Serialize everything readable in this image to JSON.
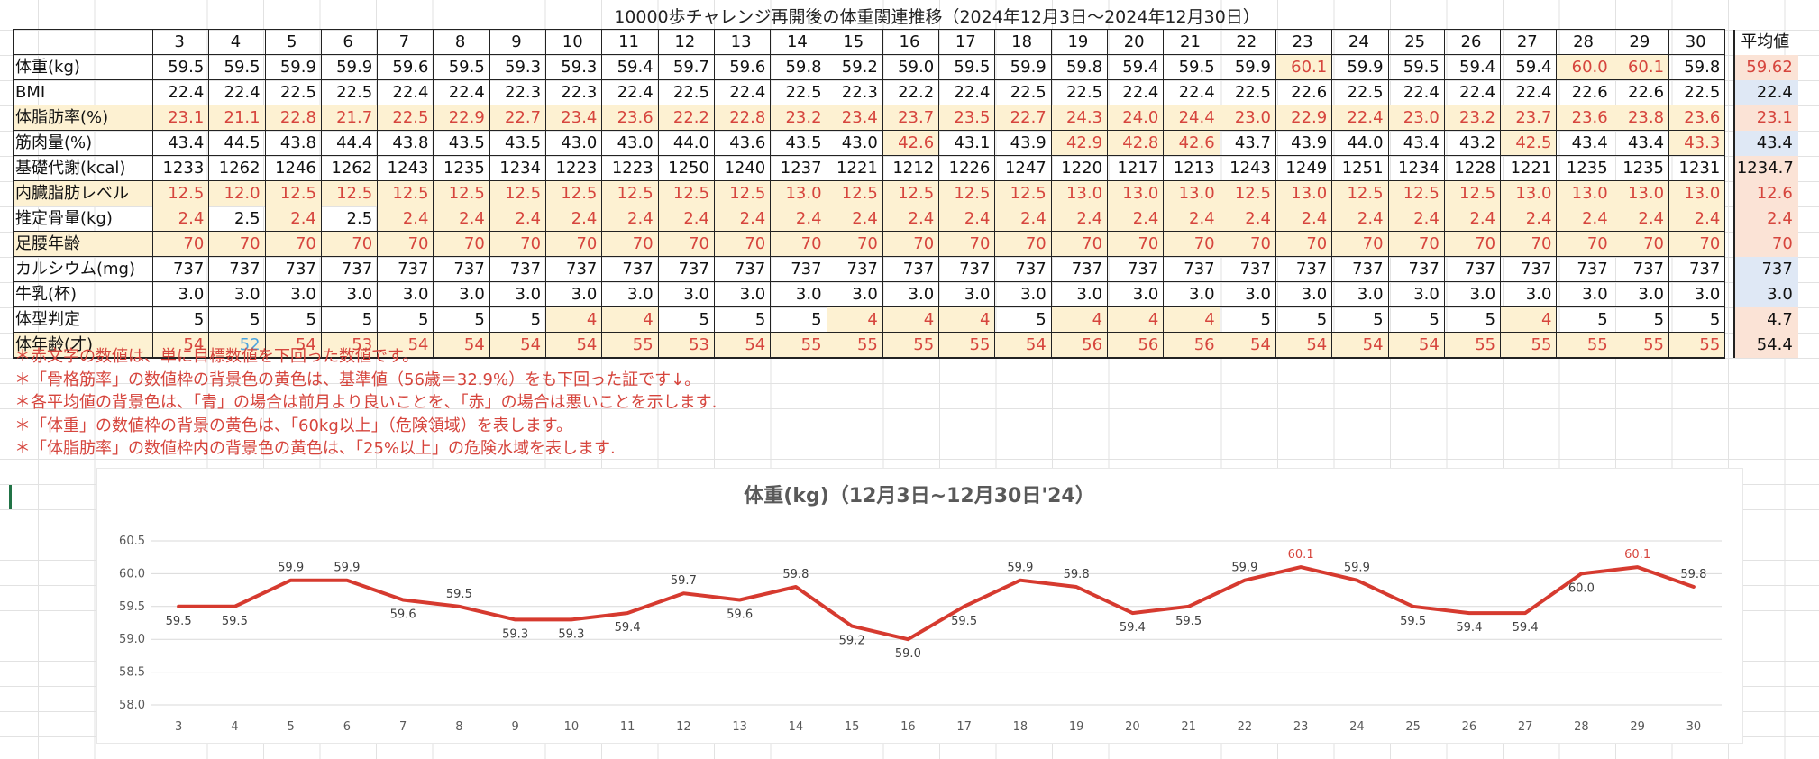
{
  "title": "10000歩チャレンジ再開後の体重関連推移（2024年12月3日～2024年12月30日）",
  "table": {
    "days": [
      "3",
      "4",
      "5",
      "6",
      "7",
      "8",
      "9",
      "10",
      "11",
      "12",
      "13",
      "14",
      "15",
      "16",
      "17",
      "18",
      "19",
      "20",
      "21",
      "22",
      "23",
      "24",
      "25",
      "26",
      "27",
      "28",
      "29",
      "30"
    ],
    "avg_header": "平均値",
    "rows": [
      {
        "label": "体重(kg)",
        "values": [
          "59.5",
          "59.5",
          "59.9",
          "59.9",
          "59.6",
          "59.5",
          "59.3",
          "59.3",
          "59.4",
          "59.7",
          "59.6",
          "59.8",
          "59.2",
          "59.0",
          "59.5",
          "59.9",
          "59.8",
          "59.4",
          "59.5",
          "59.9",
          "60.1",
          "59.9",
          "59.5",
          "59.4",
          "59.4",
          "60.0",
          "60.1",
          "59.8"
        ],
        "avg": "59.62"
      },
      {
        "label": "BMI",
        "values": [
          "22.4",
          "22.4",
          "22.5",
          "22.5",
          "22.4",
          "22.4",
          "22.3",
          "22.3",
          "22.4",
          "22.5",
          "22.4",
          "22.5",
          "22.3",
          "22.2",
          "22.4",
          "22.5",
          "22.5",
          "22.4",
          "22.4",
          "22.5",
          "22.6",
          "22.5",
          "22.4",
          "22.4",
          "22.4",
          "22.6",
          "22.6",
          "22.5"
        ],
        "avg": "22.4"
      },
      {
        "label": "体脂肪率(%)",
        "values": [
          "23.1",
          "21.1",
          "22.8",
          "21.7",
          "22.5",
          "22.9",
          "22.7",
          "23.4",
          "23.6",
          "22.2",
          "22.8",
          "23.2",
          "23.4",
          "23.7",
          "23.5",
          "22.7",
          "24.3",
          "24.0",
          "24.4",
          "23.0",
          "22.9",
          "22.4",
          "23.0",
          "23.2",
          "23.7",
          "23.6",
          "23.8",
          "23.6"
        ],
        "avg": "23.1"
      },
      {
        "label": "筋肉量(%)",
        "values": [
          "43.4",
          "44.5",
          "43.8",
          "44.4",
          "43.8",
          "43.5",
          "43.5",
          "43.0",
          "43.0",
          "44.0",
          "43.6",
          "43.5",
          "43.0",
          "42.6",
          "43.1",
          "43.9",
          "42.9",
          "42.8",
          "42.6",
          "43.7",
          "43.9",
          "44.0",
          "43.4",
          "43.2",
          "42.5",
          "43.4",
          "43.4",
          "43.3"
        ],
        "avg": "43.4"
      },
      {
        "label": "基礎代謝(kcal)",
        "values": [
          "1233",
          "1262",
          "1246",
          "1262",
          "1243",
          "1235",
          "1234",
          "1223",
          "1223",
          "1250",
          "1240",
          "1237",
          "1221",
          "1212",
          "1226",
          "1247",
          "1220",
          "1217",
          "1213",
          "1243",
          "1249",
          "1251",
          "1234",
          "1228",
          "1221",
          "1235",
          "1235",
          "1231"
        ],
        "avg": "1234.7"
      },
      {
        "label": "内臓脂肪レベル",
        "values": [
          "12.5",
          "12.0",
          "12.5",
          "12.5",
          "12.5",
          "12.5",
          "12.5",
          "12.5",
          "12.5",
          "12.5",
          "12.5",
          "13.0",
          "12.5",
          "12.5",
          "12.5",
          "12.5",
          "13.0",
          "13.0",
          "13.0",
          "12.5",
          "13.0",
          "12.5",
          "12.5",
          "12.5",
          "13.0",
          "13.0",
          "13.0",
          "13.0"
        ],
        "avg": "12.6"
      },
      {
        "label": "推定骨量(kg)",
        "values": [
          "2.4",
          "2.5",
          "2.4",
          "2.5",
          "2.4",
          "2.4",
          "2.4",
          "2.4",
          "2.4",
          "2.4",
          "2.4",
          "2.4",
          "2.4",
          "2.4",
          "2.4",
          "2.4",
          "2.4",
          "2.4",
          "2.4",
          "2.4",
          "2.4",
          "2.4",
          "2.4",
          "2.4",
          "2.4",
          "2.4",
          "2.4",
          "2.4"
        ],
        "avg": "2.4"
      },
      {
        "label": "足腰年齢",
        "values": [
          "70",
          "70",
          "70",
          "70",
          "70",
          "70",
          "70",
          "70",
          "70",
          "70",
          "70",
          "70",
          "70",
          "70",
          "70",
          "70",
          "70",
          "70",
          "70",
          "70",
          "70",
          "70",
          "70",
          "70",
          "70",
          "70",
          "70",
          "70"
        ],
        "avg": "70"
      },
      {
        "label": "カルシウム(mg)",
        "values": [
          "737",
          "737",
          "737",
          "737",
          "737",
          "737",
          "737",
          "737",
          "737",
          "737",
          "737",
          "737",
          "737",
          "737",
          "737",
          "737",
          "737",
          "737",
          "737",
          "737",
          "737",
          "737",
          "737",
          "737",
          "737",
          "737",
          "737",
          "737"
        ],
        "avg": "737"
      },
      {
        "label": "牛乳(杯)",
        "values": [
          "3.0",
          "3.0",
          "3.0",
          "3.0",
          "3.0",
          "3.0",
          "3.0",
          "3.0",
          "3.0",
          "3.0",
          "3.0",
          "3.0",
          "3.0",
          "3.0",
          "3.0",
          "3.0",
          "3.0",
          "3.0",
          "3.0",
          "3.0",
          "3.0",
          "3.0",
          "3.0",
          "3.0",
          "3.0",
          "3.0",
          "3.0",
          "3.0"
        ],
        "avg": "3.0"
      },
      {
        "label": "体型判定",
        "values": [
          "5",
          "5",
          "5",
          "5",
          "5",
          "5",
          "5",
          "4",
          "4",
          "5",
          "5",
          "5",
          "4",
          "4",
          "4",
          "5",
          "4",
          "4",
          "4",
          "5",
          "5",
          "5",
          "5",
          "5",
          "4",
          "5",
          "5",
          "5"
        ],
        "avg": "4.7"
      },
      {
        "label": "体年齢(才)",
        "values": [
          "54",
          "52",
          "54",
          "53",
          "54",
          "54",
          "54",
          "54",
          "55",
          "53",
          "54",
          "55",
          "55",
          "55",
          "55",
          "54",
          "56",
          "56",
          "56",
          "54",
          "54",
          "54",
          "54",
          "55",
          "55",
          "55",
          "55",
          "55"
        ],
        "avg": "54.4"
      }
    ]
  },
  "notes": [
    "＊赤文字の数値は、単に目標数値を下回った数値です。",
    "＊「骨格筋率」の数値枠の背景色の黄色は、基準値（56歳＝32.9%）をも下回った証です↓。",
    "＊各平均値の背景色は、「青」の場合は前月より良いことを、「赤」の場合は悪いことを示します.",
    "＊「体重」の数値枠の背景の黄色は、「60kg以上」（危険領域）を表します。",
    "＊「体脂肪率」の数値枠内の背景色の黄色は、「25%以上」の危険水域を表します."
  ],
  "colors": {
    "highlight_yellow": "#fdf1d2",
    "red_text": "#d6453d",
    "blue_text": "#4aa3df",
    "avg_better_blue": "#dfe8f5",
    "avg_worse_red": "#fbe3d6",
    "line_red": "#d63a2f"
  },
  "chart_data": {
    "type": "line",
    "title": "体重(kg)（12月3日~12月30日'24）",
    "x": [
      "3",
      "4",
      "5",
      "6",
      "7",
      "8",
      "9",
      "10",
      "11",
      "12",
      "13",
      "14",
      "15",
      "16",
      "17",
      "18",
      "19",
      "20",
      "21",
      "22",
      "23",
      "24",
      "25",
      "26",
      "27",
      "28",
      "29",
      "30"
    ],
    "series": [
      {
        "values": [
          59.5,
          59.5,
          59.9,
          59.9,
          59.6,
          59.5,
          59.3,
          59.3,
          59.4,
          59.7,
          59.6,
          59.8,
          59.2,
          59.0,
          59.5,
          59.9,
          59.8,
          59.4,
          59.5,
          59.9,
          60.1,
          59.9,
          59.5,
          59.4,
          59.4,
          60.0,
          60.1,
          59.8
        ]
      }
    ],
    "ylim": [
      58.0,
      60.5
    ],
    "yticks": [
      "58.0",
      "58.5",
      "59.0",
      "59.5",
      "60.0",
      "60.5"
    ],
    "grid": true,
    "highlight_threshold": 60.1
  }
}
